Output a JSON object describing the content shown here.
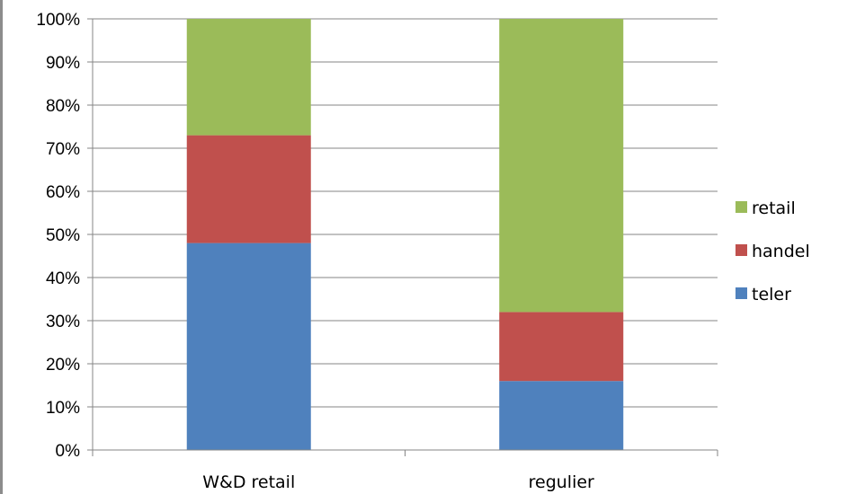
{
  "chart_data": {
    "type": "bar",
    "stacked": true,
    "percent_stacked": true,
    "categories": [
      "W&D retail",
      "regulier"
    ],
    "series": [
      {
        "name": "teler",
        "values": [
          48,
          16
        ],
        "color": "#4f81bd"
      },
      {
        "name": "handel",
        "values": [
          25,
          16
        ],
        "color": "#c0504d"
      },
      {
        "name": "retail",
        "values": [
          27,
          68
        ],
        "color": "#9bbb59"
      }
    ],
    "ylim": [
      0,
      100
    ],
    "ytick_step": 10,
    "ytick_suffix": "%",
    "grid": true,
    "legend": "right",
    "legend_order": [
      "retail",
      "handel",
      "teler"
    ],
    "title": "",
    "xlabel": "",
    "ylabel": ""
  }
}
